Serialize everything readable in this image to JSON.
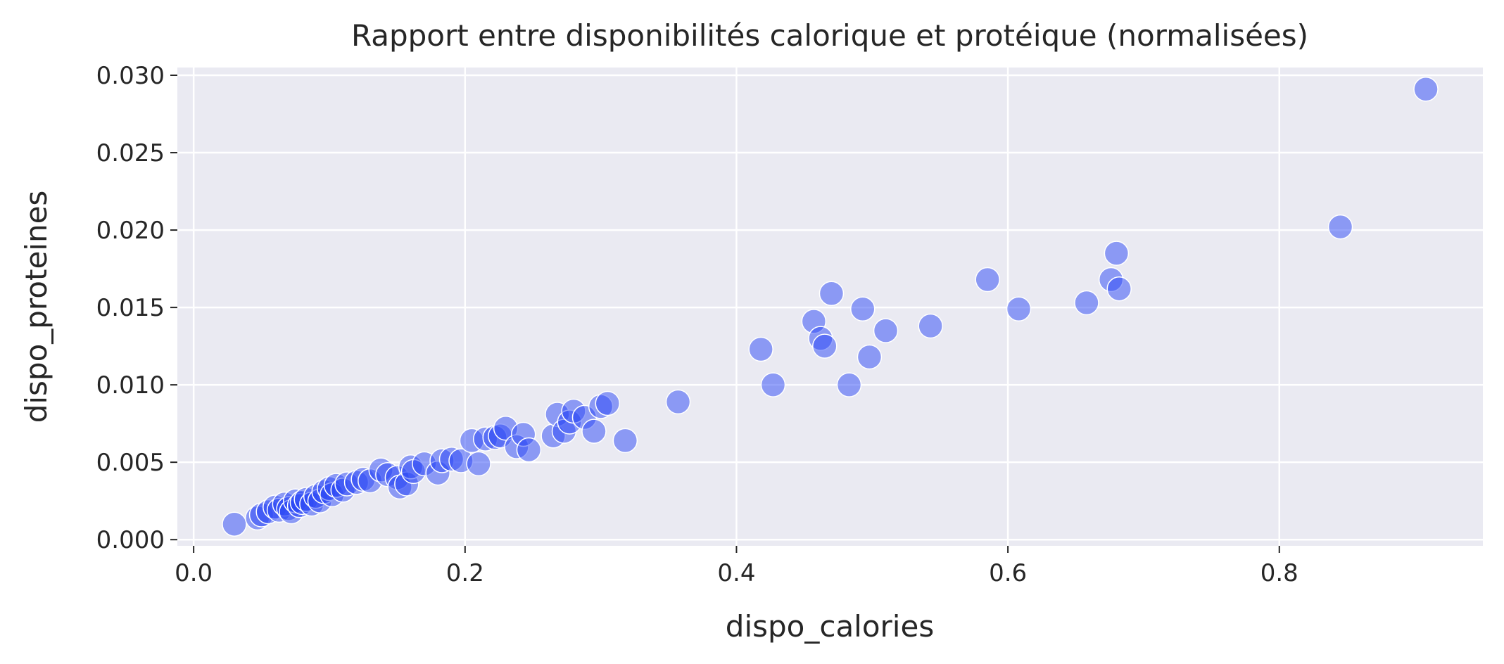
{
  "chart_data": {
    "type": "scatter",
    "title": "Rapport entre disponibilités calorique et protéique (normalisées)",
    "xlabel": "dispo_calories",
    "ylabel": "dispo_proteines",
    "xlim": [
      -0.012,
      0.95
    ],
    "ylim": [
      -0.0004,
      0.0305
    ],
    "xticks": [
      0.0,
      0.2,
      0.4,
      0.6,
      0.8
    ],
    "xtick_labels": [
      "0.0",
      "0.2",
      "0.4",
      "0.6",
      "0.8"
    ],
    "yticks": [
      0.0,
      0.005,
      0.01,
      0.015,
      0.02,
      0.025,
      0.03
    ],
    "ytick_labels": [
      "0.000",
      "0.005",
      "0.010",
      "0.015",
      "0.020",
      "0.025",
      "0.030"
    ],
    "grid": true,
    "background": "#EAEAF2",
    "point_color": "#2B47F5",
    "point_opacity": 0.5,
    "points": [
      [
        0.03,
        0.001
      ],
      [
        0.047,
        0.0014
      ],
      [
        0.05,
        0.0016
      ],
      [
        0.055,
        0.0018
      ],
      [
        0.06,
        0.0021
      ],
      [
        0.063,
        0.0019
      ],
      [
        0.067,
        0.0023
      ],
      [
        0.07,
        0.002
      ],
      [
        0.072,
        0.0018
      ],
      [
        0.075,
        0.0025
      ],
      [
        0.078,
        0.0022
      ],
      [
        0.08,
        0.0024
      ],
      [
        0.083,
        0.0026
      ],
      [
        0.087,
        0.0023
      ],
      [
        0.09,
        0.0028
      ],
      [
        0.093,
        0.0025
      ],
      [
        0.096,
        0.0031
      ],
      [
        0.1,
        0.0033
      ],
      [
        0.102,
        0.0029
      ],
      [
        0.105,
        0.0035
      ],
      [
        0.11,
        0.0032
      ],
      [
        0.113,
        0.0036
      ],
      [
        0.12,
        0.0037
      ],
      [
        0.125,
        0.0039
      ],
      [
        0.13,
        0.0038
      ],
      [
        0.138,
        0.0045
      ],
      [
        0.143,
        0.0042
      ],
      [
        0.15,
        0.004
      ],
      [
        0.152,
        0.0034
      ],
      [
        0.157,
        0.0036
      ],
      [
        0.16,
        0.0047
      ],
      [
        0.162,
        0.0044
      ],
      [
        0.17,
        0.0049
      ],
      [
        0.18,
        0.0043
      ],
      [
        0.183,
        0.0051
      ],
      [
        0.19,
        0.0052
      ],
      [
        0.197,
        0.0051
      ],
      [
        0.205,
        0.0064
      ],
      [
        0.21,
        0.0049
      ],
      [
        0.215,
        0.0065
      ],
      [
        0.222,
        0.0066
      ],
      [
        0.226,
        0.0067
      ],
      [
        0.23,
        0.0072
      ],
      [
        0.238,
        0.006
      ],
      [
        0.243,
        0.0068
      ],
      [
        0.247,
        0.0058
      ],
      [
        0.265,
        0.0067
      ],
      [
        0.268,
        0.0081
      ],
      [
        0.273,
        0.007
      ],
      [
        0.277,
        0.0076
      ],
      [
        0.28,
        0.0083
      ],
      [
        0.288,
        0.0079
      ],
      [
        0.295,
        0.007
      ],
      [
        0.3,
        0.0086
      ],
      [
        0.305,
        0.0088
      ],
      [
        0.318,
        0.0064
      ],
      [
        0.357,
        0.0089
      ],
      [
        0.418,
        0.0123
      ],
      [
        0.427,
        0.01
      ],
      [
        0.457,
        0.0141
      ],
      [
        0.462,
        0.013
      ],
      [
        0.465,
        0.0125
      ],
      [
        0.47,
        0.0159
      ],
      [
        0.483,
        0.01
      ],
      [
        0.493,
        0.0149
      ],
      [
        0.498,
        0.0118
      ],
      [
        0.51,
        0.0135
      ],
      [
        0.543,
        0.0138
      ],
      [
        0.585,
        0.0168
      ],
      [
        0.608,
        0.0149
      ],
      [
        0.658,
        0.0153
      ],
      [
        0.676,
        0.0168
      ],
      [
        0.68,
        0.0185
      ],
      [
        0.682,
        0.0162
      ],
      [
        0.845,
        0.0202
      ],
      [
        0.908,
        0.0291
      ]
    ]
  }
}
